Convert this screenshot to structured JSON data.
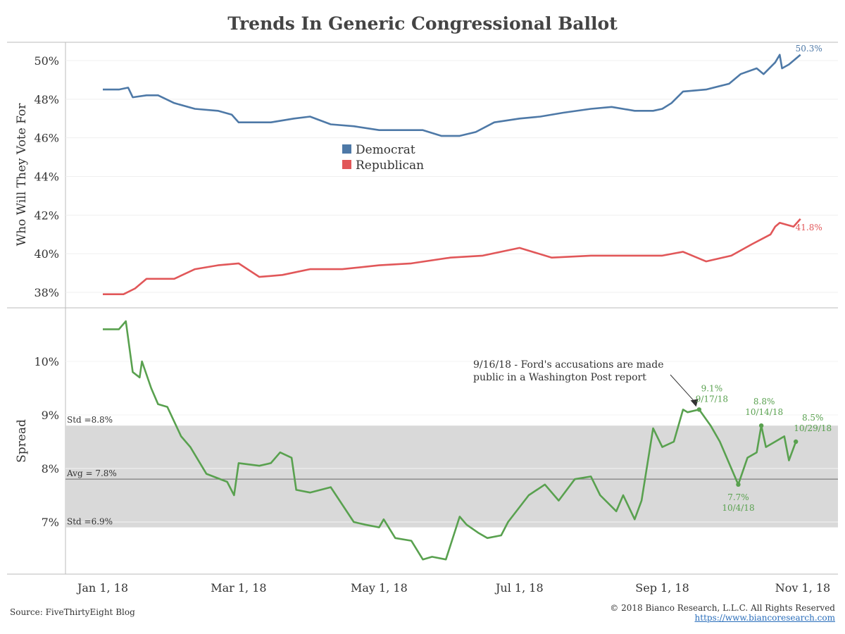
{
  "title": "Trends In Generic Congressional Ballot",
  "source": "Source: FiveThirtyEight Blog",
  "copyright": "© 2018 Bianco Research, L.L.C. All Rights Reserved",
  "website": "https://www.biancoresearch.com",
  "colors": {
    "democrat": "#4e79a7",
    "republican": "#e15759",
    "spread": "#59a14f",
    "band": "#d9d9d9"
  },
  "chart_data": [
    {
      "type": "line",
      "ylabel": "Who Will They Vote For",
      "ylim": [
        37.3,
        51.0
      ],
      "yticks": [
        38,
        40,
        42,
        44,
        46,
        48,
        50
      ],
      "ytick_labels": [
        "38%",
        "40%",
        "42%",
        "44%",
        "46%",
        "48%",
        "50%"
      ],
      "xticks": [
        "2018-01-01",
        "2018-03-01",
        "2018-05-01",
        "2018-07-01",
        "2018-09-01",
        "2018-11-01"
      ],
      "xtick_labels": [
        "Jan 1, 18",
        "Mar 1, 18",
        "May 1, 18",
        "Jul 1, 18",
        "Sep 1, 18",
        "Nov 1, 18"
      ],
      "grid": true,
      "legend": {
        "position": "center",
        "entries": [
          "Democrat",
          "Republican"
        ]
      },
      "series": [
        {
          "name": "Democrat",
          "x": [
            "2018-01-01",
            "2018-01-08",
            "2018-01-12",
            "2018-01-14",
            "2018-01-20",
            "2018-01-25",
            "2018-02-01",
            "2018-02-10",
            "2018-02-20",
            "2018-02-26",
            "2018-03-01",
            "2018-03-15",
            "2018-03-25",
            "2018-04-01",
            "2018-04-10",
            "2018-04-20",
            "2018-05-01",
            "2018-05-10",
            "2018-05-20",
            "2018-05-28",
            "2018-06-05",
            "2018-06-12",
            "2018-06-20",
            "2018-07-01",
            "2018-07-10",
            "2018-07-20",
            "2018-08-01",
            "2018-08-10",
            "2018-08-20",
            "2018-08-28",
            "2018-09-01",
            "2018-09-05",
            "2018-09-10",
            "2018-09-20",
            "2018-09-30",
            "2018-10-05",
            "2018-10-12",
            "2018-10-15",
            "2018-10-20",
            "2018-10-22",
            "2018-10-23",
            "2018-10-26",
            "2018-10-31"
          ],
          "values": [
            48.5,
            48.5,
            48.6,
            48.1,
            48.2,
            48.2,
            47.8,
            47.5,
            47.4,
            47.2,
            46.8,
            46.8,
            47.0,
            47.1,
            46.7,
            46.6,
            46.4,
            46.4,
            46.4,
            46.1,
            46.1,
            46.3,
            46.8,
            47.0,
            47.1,
            47.3,
            47.5,
            47.6,
            47.4,
            47.4,
            47.5,
            47.8,
            48.4,
            48.5,
            48.8,
            49.3,
            49.6,
            49.3,
            49.9,
            50.3,
            49.6,
            49.8,
            50.3
          ]
        },
        {
          "name": "Republican",
          "x": [
            "2018-01-01",
            "2018-01-10",
            "2018-01-15",
            "2018-01-20",
            "2018-02-01",
            "2018-02-10",
            "2018-02-20",
            "2018-03-01",
            "2018-03-10",
            "2018-03-20",
            "2018-04-01",
            "2018-04-15",
            "2018-05-01",
            "2018-05-15",
            "2018-06-01",
            "2018-06-15",
            "2018-07-01",
            "2018-07-15",
            "2018-08-01",
            "2018-08-15",
            "2018-09-01",
            "2018-09-10",
            "2018-09-20",
            "2018-10-01",
            "2018-10-10",
            "2018-10-18",
            "2018-10-20",
            "2018-10-22",
            "2018-10-28",
            "2018-10-31"
          ],
          "values": [
            37.9,
            37.9,
            38.2,
            38.7,
            38.7,
            39.2,
            39.4,
            39.5,
            38.8,
            38.9,
            39.2,
            39.2,
            39.4,
            39.5,
            39.8,
            39.9,
            40.3,
            39.8,
            39.9,
            39.9,
            39.9,
            40.1,
            39.6,
            39.9,
            40.5,
            41.0,
            41.4,
            41.6,
            41.4,
            41.8
          ]
        }
      ],
      "annotations": [
        {
          "label": "50.3%",
          "series": "Democrat",
          "x": "2018-10-31",
          "y": 50.3
        },
        {
          "label": "41.8%",
          "series": "Republican",
          "x": "2018-10-31",
          "y": 41.8
        }
      ]
    },
    {
      "type": "line",
      "ylabel": "Spread",
      "ylim": [
        6.1,
        10.85
      ],
      "yticks": [
        7,
        8,
        9,
        10
      ],
      "ytick_labels": [
        "7%",
        "8%",
        "9%",
        "10%"
      ],
      "grid": true,
      "reference_lines": [
        {
          "label": "Std =8.8%",
          "value": 8.8
        },
        {
          "label": "Avg = 7.8%",
          "value": 7.8
        },
        {
          "label": "Std =6.9%",
          "value": 6.9
        }
      ],
      "series": [
        {
          "name": "Spread",
          "x": [
            "2018-01-01",
            "2018-01-08",
            "2018-01-11",
            "2018-01-14",
            "2018-01-17",
            "2018-01-18",
            "2018-01-22",
            "2018-01-25",
            "2018-01-29",
            "2018-02-04",
            "2018-02-08",
            "2018-02-15",
            "2018-02-24",
            "2018-02-27",
            "2018-03-01",
            "2018-03-10",
            "2018-03-15",
            "2018-03-19",
            "2018-03-24",
            "2018-03-26",
            "2018-04-01",
            "2018-04-10",
            "2018-04-20",
            "2018-04-25",
            "2018-05-01",
            "2018-05-03",
            "2018-05-08",
            "2018-05-15",
            "2018-05-20",
            "2018-05-24",
            "2018-05-30",
            "2018-06-05",
            "2018-06-08",
            "2018-06-13",
            "2018-06-17",
            "2018-06-23",
            "2018-06-26",
            "2018-07-05",
            "2018-07-12",
            "2018-07-18",
            "2018-07-25",
            "2018-08-01",
            "2018-08-05",
            "2018-08-12",
            "2018-08-15",
            "2018-08-20",
            "2018-08-23",
            "2018-08-28",
            "2018-09-01",
            "2018-09-06",
            "2018-09-10",
            "2018-09-12",
            "2018-09-17",
            "2018-09-22",
            "2018-09-26",
            "2018-10-01",
            "2018-10-04",
            "2018-10-08",
            "2018-10-12",
            "2018-10-14",
            "2018-10-16",
            "2018-10-20",
            "2018-10-24",
            "2018-10-26",
            "2018-10-29"
          ],
          "values": [
            10.6,
            10.6,
            10.75,
            9.8,
            9.7,
            10.0,
            9.5,
            9.2,
            9.15,
            8.6,
            8.4,
            7.9,
            7.75,
            7.5,
            8.1,
            8.05,
            8.1,
            8.3,
            8.2,
            7.6,
            7.55,
            7.65,
            7.0,
            6.95,
            6.9,
            7.05,
            6.7,
            6.65,
            6.3,
            6.35,
            6.3,
            7.1,
            6.95,
            6.8,
            6.7,
            6.75,
            7.0,
            7.5,
            7.7,
            7.4,
            7.8,
            7.85,
            7.5,
            7.2,
            7.5,
            7.05,
            7.4,
            8.75,
            8.4,
            8.5,
            9.1,
            9.05,
            9.1,
            8.8,
            8.5,
            8.0,
            7.7,
            8.2,
            8.3,
            8.8,
            8.4,
            8.5,
            8.6,
            8.15,
            8.5
          ]
        }
      ],
      "annotations": [
        {
          "label": "9/16/18 - Ford's accusations are made public in a Washington Post report",
          "lines": [
            "9/16/18 - Ford's accusations are made",
            "public in a Washington Post report"
          ],
          "x": "2018-09-16",
          "y": 9.1
        },
        {
          "label": "9.1%",
          "date_label": "9/17/18",
          "x": "2018-09-17",
          "y": 9.1
        },
        {
          "label": "7.7%",
          "date_label": "10/4/18",
          "x": "2018-10-04",
          "y": 7.7
        },
        {
          "label": "8.8%",
          "date_label": "10/14/18",
          "x": "2018-10-14",
          "y": 8.8
        },
        {
          "label": "8.5%",
          "date_label": "10/29/18",
          "x": "2018-10-29",
          "y": 8.5
        }
      ]
    }
  ]
}
